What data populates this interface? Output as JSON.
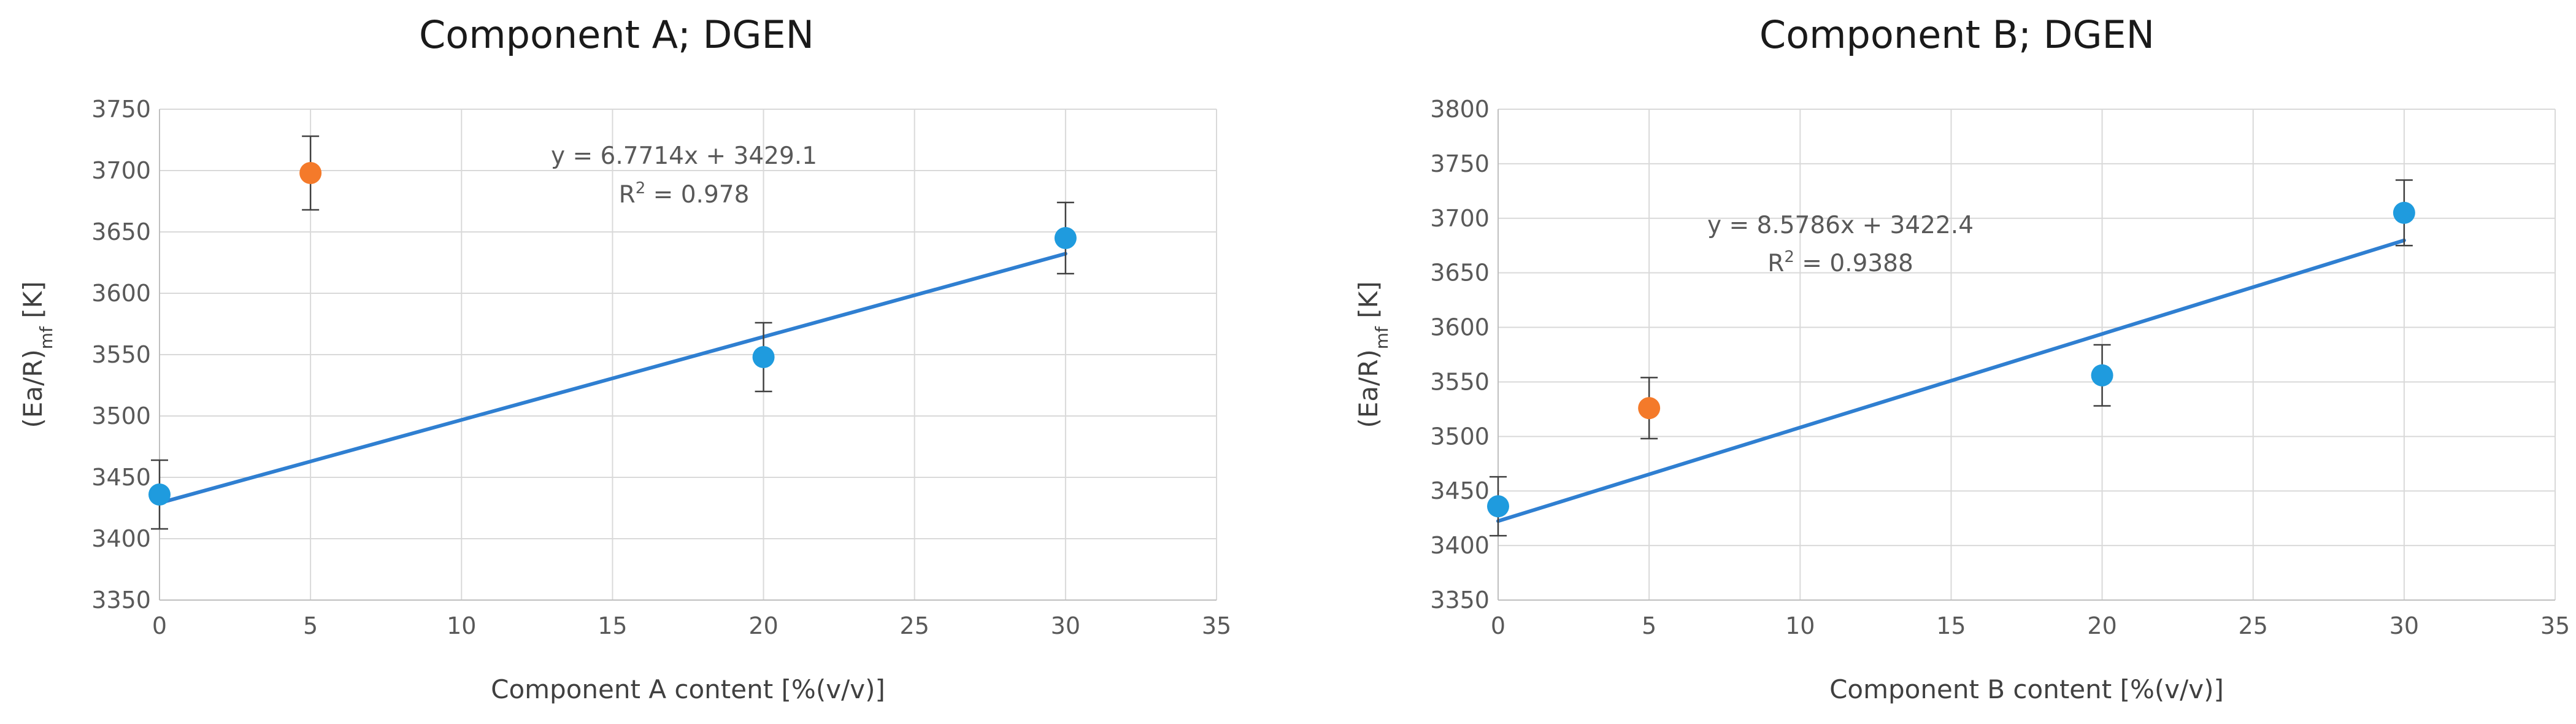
{
  "chart_data": [
    {
      "type": "scatter",
      "title": "Component A; DGEN",
      "xlabel": "Component A content [%(v/v)]",
      "ylabel": "(Ea/R)",
      "ylabel_sub": "mf",
      "ylabel_suffix": " [K]",
      "xlim": [
        0,
        35
      ],
      "ylim": [
        3350,
        3750
      ],
      "xticks": [
        0,
        5,
        10,
        15,
        20,
        25,
        30,
        35
      ],
      "yticks": [
        3350,
        3400,
        3450,
        3500,
        3550,
        3600,
        3650,
        3700,
        3750
      ],
      "grid": true,
      "series": [
        {
          "color": "#1f9bde",
          "x": [
            0,
            20,
            30
          ],
          "y": [
            3436,
            3548,
            3645
          ],
          "error": [
            28,
            28,
            29
          ]
        },
        {
          "color": "#f47a2a",
          "x": [
            5
          ],
          "y": [
            3698
          ],
          "error": [
            30
          ]
        }
      ],
      "trendline": {
        "slope": 6.7714,
        "intercept": 3429.1,
        "x_range": [
          0,
          30
        ],
        "color": "#2f7fd1"
      },
      "equation": "y = 6.7714x + 3429.1",
      "r2_prefix": "R",
      "r2_sup": "2",
      "r2_value": " = 0.978"
    },
    {
      "type": "scatter",
      "title": "Component B; DGEN",
      "xlabel": "Component B content [%(v/v)]",
      "ylabel": "(Ea/R)",
      "ylabel_sub": "mf",
      "ylabel_suffix": " [K]",
      "xlim": [
        0,
        35
      ],
      "ylim": [
        3350,
        3800
      ],
      "xticks": [
        0,
        5,
        10,
        15,
        20,
        25,
        30,
        35
      ],
      "yticks": [
        3350,
        3400,
        3450,
        3500,
        3550,
        3600,
        3650,
        3700,
        3750,
        3800
      ],
      "grid": true,
      "series": [
        {
          "color": "#1f9bde",
          "x": [
            0,
            20,
            30
          ],
          "y": [
            3436,
            3556,
            3705
          ],
          "error": [
            27,
            28,
            30
          ]
        },
        {
          "color": "#f47a2a",
          "x": [
            5
          ],
          "y": [
            3526
          ],
          "error": [
            28
          ]
        }
      ],
      "trendline": {
        "slope": 8.5786,
        "intercept": 3422.4,
        "x_range": [
          0,
          30
        ],
        "color": "#2f7fd1"
      },
      "equation": "y = 8.5786x + 3422.4",
      "r2_prefix": "R",
      "r2_sup": "2",
      "r2_value": " = 0.9388"
    }
  ]
}
